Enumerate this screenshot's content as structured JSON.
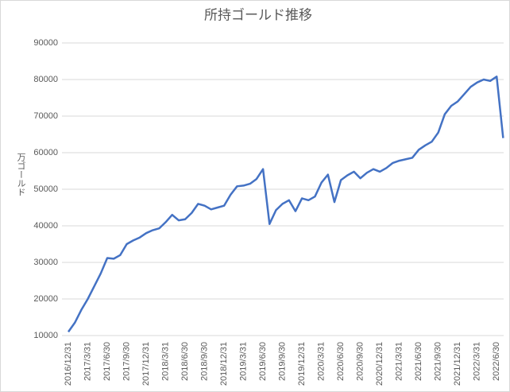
{
  "chart_data": {
    "type": "line",
    "title": "所持ゴールド推移",
    "y_label": "万ゴールド",
    "categories": [
      "2016/12/31",
      null,
      null,
      "2017/3/31",
      null,
      null,
      "2017/6/30",
      null,
      null,
      "2017/9/30",
      null,
      null,
      "2017/12/31",
      null,
      null,
      "2018/3/31",
      null,
      null,
      "2018/6/30",
      null,
      null,
      "2018/9/30",
      null,
      null,
      "2018/12/31",
      null,
      null,
      "2019/3/31",
      null,
      null,
      "2019/6/30",
      null,
      null,
      "2019/9/30",
      null,
      null,
      "2019/12/31",
      null,
      null,
      "2020/3/31",
      null,
      null,
      "2020/6/30",
      null,
      null,
      "2020/9/30",
      null,
      null,
      "2020/12/31",
      null,
      null,
      "2021/3/31",
      null,
      null,
      "2021/6/30",
      null,
      null,
      "2021/9/30",
      null,
      null,
      "2021/12/31",
      null,
      null,
      "2022/3/31",
      null,
      null,
      "2022/6/30",
      null
    ],
    "values": [
      11000,
      13500,
      17000,
      20000,
      23500,
      27000,
      31200,
      31000,
      32000,
      35000,
      36000,
      36800,
      38000,
      38800,
      39300,
      41000,
      43000,
      41500,
      41800,
      43500,
      46000,
      45500,
      44500,
      45000,
      45500,
      48500,
      50800,
      51000,
      51500,
      52800,
      55500,
      40500,
      44300,
      46000,
      47000,
      44000,
      47500,
      47000,
      48000,
      51800,
      54000,
      46500,
      52500,
      53800,
      54800,
      53000,
      54500,
      55500,
      54800,
      55800,
      57200,
      57800,
      58200,
      58600,
      60800,
      62000,
      63000,
      65500,
      70500,
      72800,
      74000,
      76000,
      78000,
      79200,
      80000,
      79600,
      80800,
      64000
    ],
    "color": "#4472c4",
    "ylim": [
      10000,
      90000
    ],
    "yticks": [
      10000,
      20000,
      30000,
      40000,
      50000,
      60000,
      70000,
      80000,
      90000
    ],
    "grid": true
  }
}
